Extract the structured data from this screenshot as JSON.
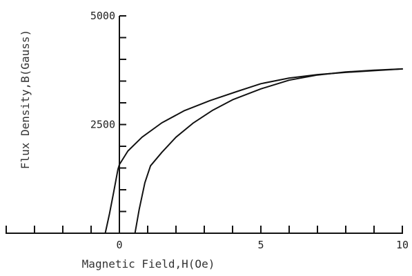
{
  "chart_data": {
    "type": "line",
    "title": "",
    "xlabel": "Magnetic Field,H(Oe)",
    "ylabel": "Flux Density,B(Gauss)",
    "xlim": [
      -4.2,
      10
    ],
    "ylim": [
      0,
      5000
    ],
    "x_ticks": [
      -4,
      -3,
      -2,
      -1,
      0,
      1,
      2,
      3,
      4,
      5,
      6,
      7,
      8,
      9,
      10
    ],
    "x_tick_labels": [
      {
        "value": 0,
        "label": "0"
      },
      {
        "value": 5,
        "label": "5"
      },
      {
        "value": 10,
        "label": "10"
      }
    ],
    "y_ticks": [
      500,
      1000,
      1500,
      2000,
      2500,
      3000,
      3500,
      4000,
      4500,
      5000
    ],
    "y_tick_labels": [
      {
        "value": 2500,
        "label": "2500"
      },
      {
        "value": 5000,
        "label": "5000"
      }
    ],
    "grid": false,
    "series": [
      {
        "x": [
          -0.5,
          -0.35,
          -0.2,
          -0.05,
          0.0,
          0.3,
          0.8,
          1.5,
          2.3,
          3.2,
          4.2,
          5.0,
          6.0,
          7.0,
          8.0,
          9.0,
          10.0
        ],
        "values": [
          0,
          450,
          950,
          1470,
          1580,
          1890,
          2210,
          2540,
          2820,
          3050,
          3270,
          3440,
          3570,
          3650,
          3700,
          3740,
          3780
        ]
      },
      {
        "x": [
          0.55,
          0.7,
          0.9,
          1.1,
          1.5,
          2.0,
          2.6,
          3.3,
          4.0,
          5.0,
          6.0,
          7.0,
          8.0,
          9.0,
          10.0
        ],
        "values": [
          0,
          550,
          1160,
          1550,
          1860,
          2210,
          2530,
          2830,
          3070,
          3320,
          3520,
          3640,
          3710,
          3750,
          3780
        ]
      }
    ]
  }
}
